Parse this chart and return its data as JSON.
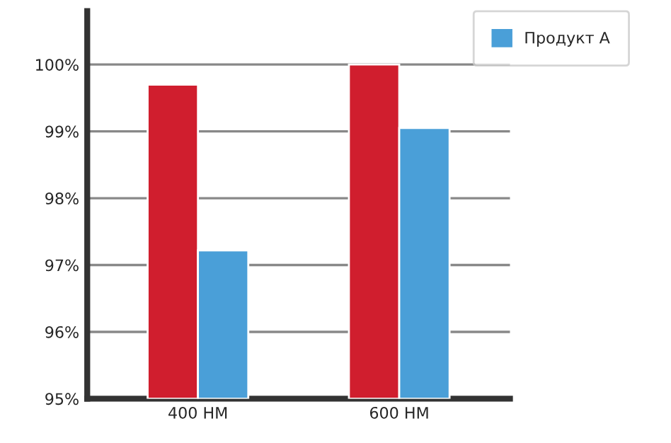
{
  "chart_data": {
    "type": "bar",
    "categories": [
      "400 НМ",
      "600 НМ"
    ],
    "series": [
      {
        "color": "#d01e2e",
        "values": [
          99.7,
          100
        ]
      },
      {
        "name": "Продукт A",
        "color": "#4a9fd8",
        "values": [
          97.22,
          99.05
        ]
      }
    ],
    "ylim": [
      95,
      100.8
    ],
    "yticks": [
      {
        "value": 95,
        "label": "95%"
      },
      {
        "value": 96,
        "label": "96%"
      },
      {
        "value": 97,
        "label": "97%"
      },
      {
        "value": 98,
        "label": "98%"
      },
      {
        "value": 99,
        "label": "99%"
      },
      {
        "value": 100,
        "label": "100%"
      }
    ],
    "grid": "y",
    "legend": "top right"
  }
}
